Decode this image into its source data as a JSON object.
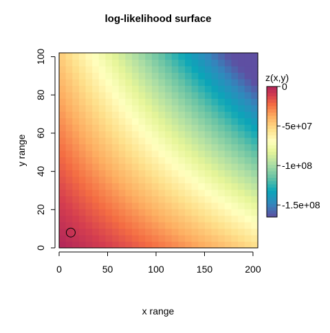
{
  "chart_data": {
    "type": "heatmap",
    "title": "log-likelihood surface",
    "xlabel": "x range",
    "ylabel": "y range",
    "xlim": [
      0,
      205
    ],
    "ylim": [
      0,
      102
    ],
    "x_ticks": [
      0,
      50,
      100,
      150,
      200
    ],
    "y_ticks": [
      0,
      20,
      40,
      60,
      80,
      100
    ],
    "grid": false,
    "grid_cells": {
      "nx": 30,
      "ny": 30
    },
    "z_range": [
      -165000000,
      0
    ],
    "colorbar": {
      "title": "z(x,y)",
      "ticks": [
        0,
        -50000000,
        -100000000,
        -150000000
      ],
      "tick_labels": [
        "0",
        "-5e+07",
        "-1e+08",
        "-1.5e+08"
      ]
    },
    "colormap_stops": [
      {
        "t": 0.0,
        "color": "#5E4FA2"
      },
      {
        "t": 0.1,
        "color": "#3288BD"
      },
      {
        "t": 0.2,
        "color": "#0AA6B8"
      },
      {
        "t": 0.3,
        "color": "#66C2A5"
      },
      {
        "t": 0.4,
        "color": "#ABDDA4"
      },
      {
        "t": 0.5,
        "color": "#E6F598"
      },
      {
        "t": 0.58,
        "color": "#FFFFBF"
      },
      {
        "t": 0.67,
        "color": "#FEE08B"
      },
      {
        "t": 0.77,
        "color": "#FDAE61"
      },
      {
        "t": 0.86,
        "color": "#F46D43"
      },
      {
        "t": 0.93,
        "color": "#D53E4F"
      },
      {
        "t": 1.0,
        "color": "#B0255A"
      }
    ],
    "maximum_marker": {
      "x": 12,
      "y": 8
    }
  }
}
